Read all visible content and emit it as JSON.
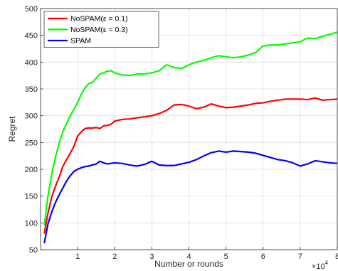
{
  "chart_data": {
    "type": "line",
    "title": "",
    "xlabel": "Number or rounds",
    "ylabel": "Regret",
    "x_multiplier_label": "×10",
    "x_multiplier_exponent": "4",
    "xlim": [
      0,
      8
    ],
    "ylim": [
      50,
      500
    ],
    "xticks": [
      1,
      2,
      3,
      4,
      5,
      6,
      7,
      8
    ],
    "yticks": [
      50,
      100,
      150,
      200,
      250,
      300,
      350,
      400,
      450,
      500
    ],
    "grid": true,
    "legend_position": "top-left",
    "series": [
      {
        "name": "NoSPAM(ε = 0.1)",
        "color": "#ff0000",
        "points": [
          [
            0.1,
            80
          ],
          [
            0.2,
            118
          ],
          [
            0.3,
            148
          ],
          [
            0.4,
            168
          ],
          [
            0.5,
            185
          ],
          [
            0.6,
            205
          ],
          [
            0.7,
            218
          ],
          [
            0.8,
            230
          ],
          [
            0.9,
            243
          ],
          [
            1.0,
            262
          ],
          [
            1.1,
            270
          ],
          [
            1.2,
            276
          ],
          [
            1.3,
            277
          ],
          [
            1.4,
            277
          ],
          [
            1.5,
            278
          ],
          [
            1.6,
            276
          ],
          [
            1.7,
            281
          ],
          [
            1.8,
            282
          ],
          [
            1.9,
            284
          ],
          [
            2.0,
            290
          ],
          [
            2.2,
            293
          ],
          [
            2.4,
            294
          ],
          [
            2.6,
            296
          ],
          [
            2.8,
            298
          ],
          [
            3.0,
            300
          ],
          [
            3.2,
            304
          ],
          [
            3.4,
            310
          ],
          [
            3.6,
            320
          ],
          [
            3.8,
            321
          ],
          [
            4.0,
            318
          ],
          [
            4.2,
            313
          ],
          [
            4.4,
            316
          ],
          [
            4.6,
            322
          ],
          [
            4.8,
            318
          ],
          [
            5.0,
            315
          ],
          [
            5.2,
            316
          ],
          [
            5.4,
            318
          ],
          [
            5.6,
            320
          ],
          [
            5.8,
            323
          ],
          [
            6.0,
            324
          ],
          [
            6.2,
            327
          ],
          [
            6.4,
            329
          ],
          [
            6.6,
            331
          ],
          [
            6.8,
            331
          ],
          [
            7.0,
            331
          ],
          [
            7.2,
            330
          ],
          [
            7.4,
            333
          ],
          [
            7.6,
            329
          ],
          [
            7.8,
            330
          ],
          [
            8.0,
            331
          ]
        ]
      },
      {
        "name": "NoSPAM(ε = 0.3)",
        "color": "#00ff00",
        "points": [
          [
            0.1,
            95
          ],
          [
            0.2,
            150
          ],
          [
            0.3,
            190
          ],
          [
            0.4,
            222
          ],
          [
            0.5,
            248
          ],
          [
            0.6,
            270
          ],
          [
            0.7,
            285
          ],
          [
            0.8,
            300
          ],
          [
            0.9,
            312
          ],
          [
            1.0,
            325
          ],
          [
            1.1,
            340
          ],
          [
            1.2,
            352
          ],
          [
            1.3,
            360
          ],
          [
            1.4,
            362
          ],
          [
            1.5,
            370
          ],
          [
            1.6,
            378
          ],
          [
            1.7,
            380
          ],
          [
            1.8,
            383
          ],
          [
            1.9,
            384
          ],
          [
            2.0,
            380
          ],
          [
            2.2,
            376
          ],
          [
            2.4,
            375
          ],
          [
            2.6,
            378
          ],
          [
            2.8,
            378
          ],
          [
            3.0,
            380
          ],
          [
            3.2,
            384
          ],
          [
            3.4,
            395
          ],
          [
            3.6,
            390
          ],
          [
            3.8,
            388
          ],
          [
            4.0,
            395
          ],
          [
            4.2,
            400
          ],
          [
            4.4,
            403
          ],
          [
            4.6,
            408
          ],
          [
            4.8,
            412
          ],
          [
            5.0,
            410
          ],
          [
            5.2,
            408
          ],
          [
            5.4,
            410
          ],
          [
            5.6,
            413
          ],
          [
            5.8,
            418
          ],
          [
            6.0,
            430
          ],
          [
            6.2,
            432
          ],
          [
            6.4,
            432
          ],
          [
            6.6,
            434
          ],
          [
            6.8,
            436
          ],
          [
            7.0,
            438
          ],
          [
            7.2,
            445
          ],
          [
            7.4,
            444
          ],
          [
            7.6,
            448
          ],
          [
            7.8,
            452
          ],
          [
            8.0,
            456
          ]
        ]
      },
      {
        "name": "SPAM",
        "color": "#0000ff",
        "points": [
          [
            0.1,
            62
          ],
          [
            0.2,
            98
          ],
          [
            0.3,
            120
          ],
          [
            0.4,
            138
          ],
          [
            0.5,
            152
          ],
          [
            0.6,
            165
          ],
          [
            0.7,
            178
          ],
          [
            0.8,
            188
          ],
          [
            0.9,
            196
          ],
          [
            1.0,
            200
          ],
          [
            1.1,
            203
          ],
          [
            1.2,
            205
          ],
          [
            1.3,
            206
          ],
          [
            1.4,
            208
          ],
          [
            1.5,
            210
          ],
          [
            1.6,
            215
          ],
          [
            1.7,
            212
          ],
          [
            1.8,
            210
          ],
          [
            1.9,
            211
          ],
          [
            2.0,
            212
          ],
          [
            2.2,
            211
          ],
          [
            2.4,
            208
          ],
          [
            2.6,
            206
          ],
          [
            2.8,
            209
          ],
          [
            3.0,
            215
          ],
          [
            3.2,
            208
          ],
          [
            3.4,
            207
          ],
          [
            3.6,
            207
          ],
          [
            3.8,
            210
          ],
          [
            4.0,
            213
          ],
          [
            4.2,
            218
          ],
          [
            4.4,
            225
          ],
          [
            4.6,
            231
          ],
          [
            4.8,
            234
          ],
          [
            5.0,
            232
          ],
          [
            5.2,
            234
          ],
          [
            5.4,
            233
          ],
          [
            5.6,
            232
          ],
          [
            5.8,
            230
          ],
          [
            6.0,
            226
          ],
          [
            6.2,
            222
          ],
          [
            6.4,
            218
          ],
          [
            6.6,
            216
          ],
          [
            6.8,
            212
          ],
          [
            7.0,
            206
          ],
          [
            7.2,
            210
          ],
          [
            7.4,
            216
          ],
          [
            7.6,
            214
          ],
          [
            7.8,
            212
          ],
          [
            8.0,
            211
          ]
        ]
      }
    ]
  }
}
